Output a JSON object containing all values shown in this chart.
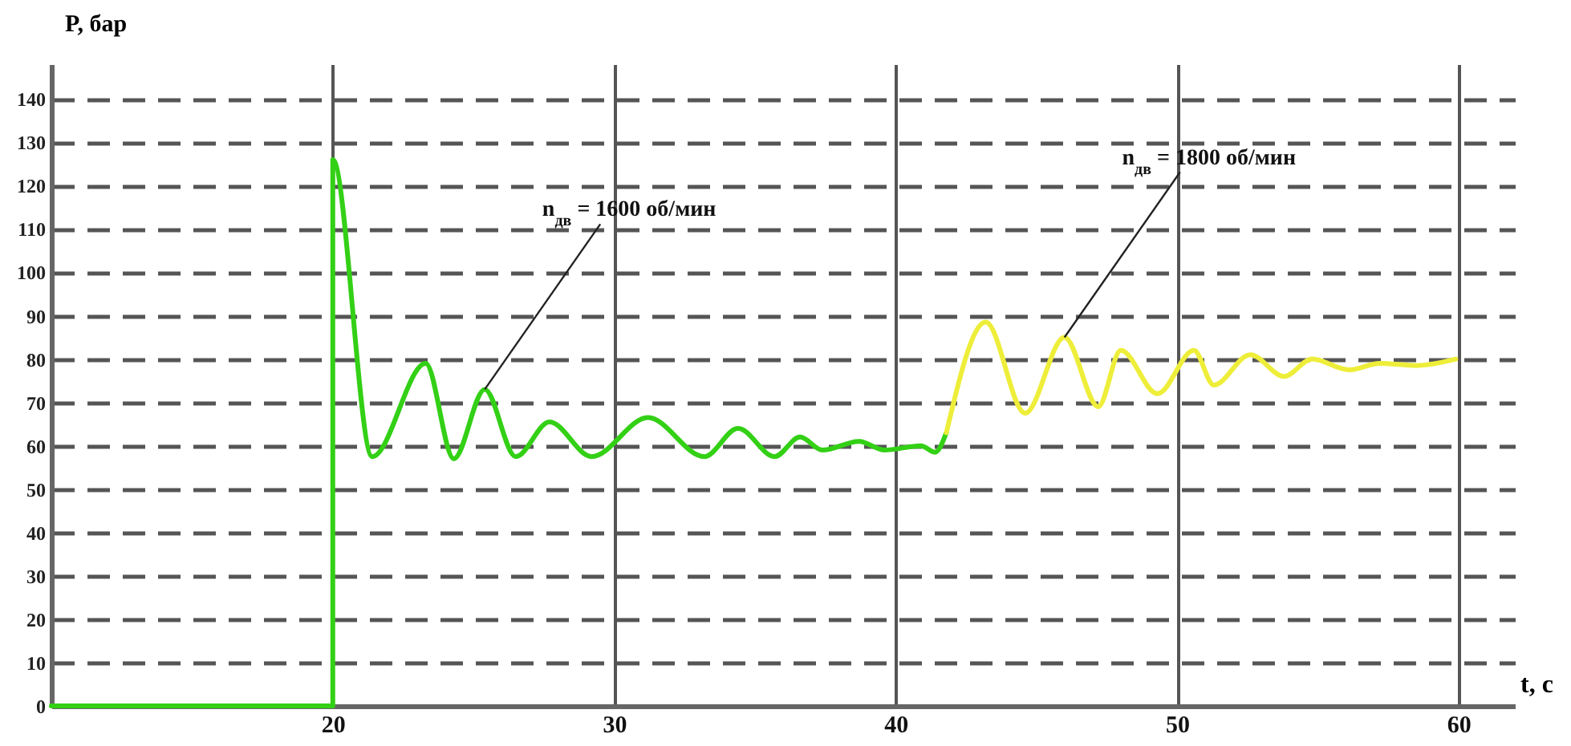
{
  "chart_data": {
    "type": "line",
    "xlabel": "t, с",
    "ylabel": "P, бар",
    "xlim": [
      10,
      62
    ],
    "ylim": [
      0,
      148
    ],
    "xticks": [
      20,
      30,
      40,
      50,
      60
    ],
    "yticks": [
      0,
      10,
      20,
      30,
      40,
      50,
      60,
      70,
      80,
      90,
      100,
      110,
      120,
      130,
      140
    ],
    "grid": true,
    "line_style": "solid",
    "marker": "none",
    "series": [
      {
        "color": "#33d016",
        "x": [
          10,
          20,
          20,
          21.4,
          23.3,
          24.3,
          25.4,
          26.5,
          27.7,
          29.2,
          31.2,
          33.2,
          34.4,
          35.7,
          36.6,
          37.4,
          38.7,
          39.6,
          40.9,
          41.4,
          41.8
        ],
        "values": [
          0,
          0,
          126,
          57.5,
          79,
          57,
          73,
          57.5,
          65.5,
          57.5,
          66.5,
          57.5,
          64,
          57.5,
          62,
          59,
          61,
          59,
          60,
          58.5,
          63
        ]
      },
      {
        "color": "#eeee3a",
        "x": [
          41.8,
          43.2,
          44.6,
          46.0,
          47.2,
          48.0,
          49.3,
          50.6,
          51.3,
          52.6,
          53.8,
          54.8,
          56.1,
          57.2,
          58.5,
          59.9
        ],
        "values": [
          63,
          88.5,
          67.5,
          85,
          69,
          82,
          72,
          82,
          74,
          81,
          76,
          80,
          77.5,
          79,
          78.5,
          80
        ]
      }
    ],
    "annotations": [
      {
        "text": "n$_{дв}$ = 1600 об/мин",
        "x": 25.4,
        "y": 73
      },
      {
        "text": "n$_{дв}$ = 1800 об/мин",
        "x": 46.0,
        "y": 85
      }
    ]
  }
}
